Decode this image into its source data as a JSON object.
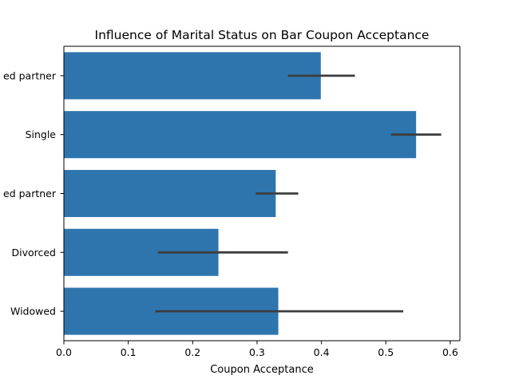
{
  "chart_data": {
    "type": "bar",
    "orientation": "horizontal",
    "title": "Influence of Marital Status on Bar Coupon Acceptance",
    "xlabel": "Coupon Acceptance",
    "ylabel": "",
    "xlim": [
      0,
      0.615
    ],
    "xticks": [
      0.0,
      0.1,
      0.2,
      0.3,
      0.4,
      0.5,
      0.6
    ],
    "xtick_labels": [
      "0.0",
      "0.1",
      "0.2",
      "0.3",
      "0.4",
      "0.5",
      "0.6"
    ],
    "categories": [
      "Married partner",
      "Single",
      "Unmarried partner",
      "Divorced",
      "Widowed"
    ],
    "category_labels_visible": [
      "ed partner",
      "Single",
      "ed partner",
      "Divorced",
      "Widowed"
    ],
    "values": [
      0.399,
      0.547,
      0.329,
      0.24,
      0.333
    ],
    "error_low": [
      0.348,
      0.508,
      0.298,
      0.146,
      0.142
    ],
    "error_high": [
      0.452,
      0.586,
      0.364,
      0.348,
      0.527
    ],
    "grid": false,
    "legend": "none",
    "colors": {
      "bar": "#2e75ae",
      "error_bar": "#3d3d3d",
      "axis": "#000000",
      "background": "#ffffff"
    }
  }
}
